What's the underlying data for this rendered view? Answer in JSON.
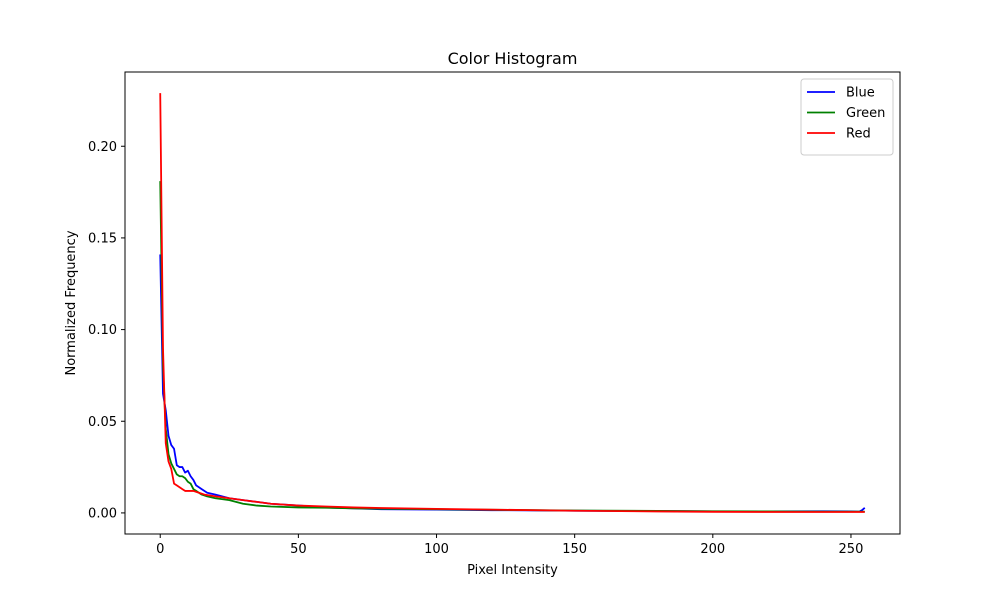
{
  "chart_data": {
    "type": "line",
    "title": "Color Histogram",
    "xlabel": "Pixel Intensity",
    "ylabel": "Normalized Frequency",
    "xlim": [
      -12.75,
      267.75
    ],
    "ylim": [
      -0.0115,
      0.2405
    ],
    "xticks": [
      0,
      50,
      100,
      150,
      200,
      250
    ],
    "xtick_labels": [
      "0",
      "50",
      "100",
      "150",
      "200",
      "250"
    ],
    "yticks": [
      0.0,
      0.05,
      0.1,
      0.15,
      0.2
    ],
    "ytick_labels": [
      "0.00",
      "0.05",
      "0.10",
      "0.15",
      "0.20"
    ],
    "grid": false,
    "legend_position": "top-right",
    "series": [
      {
        "name": "Blue",
        "color": "#0000ff",
        "points": [
          [
            0,
            0.141
          ],
          [
            1,
            0.065
          ],
          [
            2,
            0.056
          ],
          [
            3,
            0.042
          ],
          [
            4,
            0.037
          ],
          [
            5,
            0.035
          ],
          [
            6,
            0.026
          ],
          [
            7,
            0.025
          ],
          [
            8,
            0.025
          ],
          [
            9,
            0.022
          ],
          [
            10,
            0.023
          ],
          [
            11,
            0.02
          ],
          [
            12,
            0.018
          ],
          [
            13,
            0.015
          ],
          [
            14,
            0.014
          ],
          [
            15,
            0.013
          ],
          [
            17,
            0.011
          ],
          [
            20,
            0.01
          ],
          [
            25,
            0.008
          ],
          [
            30,
            0.007
          ],
          [
            35,
            0.006
          ],
          [
            40,
            0.005
          ],
          [
            50,
            0.004
          ],
          [
            60,
            0.003
          ],
          [
            70,
            0.0025
          ],
          [
            80,
            0.002
          ],
          [
            100,
            0.0018
          ],
          [
            120,
            0.0015
          ],
          [
            150,
            0.0012
          ],
          [
            180,
            0.001
          ],
          [
            200,
            0.0008
          ],
          [
            220,
            0.0008
          ],
          [
            240,
            0.0009
          ],
          [
            250,
            0.0008
          ],
          [
            253,
            0.0007
          ],
          [
            254,
            0.0015
          ],
          [
            255,
            0.0028
          ]
        ]
      },
      {
        "name": "Green",
        "color": "#008000",
        "points": [
          [
            0,
            0.181
          ],
          [
            1,
            0.08
          ],
          [
            2,
            0.046
          ],
          [
            3,
            0.032
          ],
          [
            4,
            0.027
          ],
          [
            5,
            0.024
          ],
          [
            6,
            0.021
          ],
          [
            7,
            0.02
          ],
          [
            8,
            0.02
          ],
          [
            9,
            0.019
          ],
          [
            10,
            0.017
          ],
          [
            11,
            0.016
          ],
          [
            12,
            0.013
          ],
          [
            13,
            0.012
          ],
          [
            15,
            0.01
          ],
          [
            17,
            0.009
          ],
          [
            20,
            0.008
          ],
          [
            25,
            0.007
          ],
          [
            30,
            0.005
          ],
          [
            35,
            0.004
          ],
          [
            40,
            0.0035
          ],
          [
            50,
            0.003
          ],
          [
            60,
            0.0028
          ],
          [
            70,
            0.0025
          ],
          [
            80,
            0.0023
          ],
          [
            100,
            0.002
          ],
          [
            120,
            0.0017
          ],
          [
            150,
            0.0013
          ],
          [
            180,
            0.0011
          ],
          [
            200,
            0.0009
          ],
          [
            220,
            0.0008
          ],
          [
            240,
            0.0007
          ],
          [
            255,
            0.0007
          ]
        ]
      },
      {
        "name": "Red",
        "color": "#ff0000",
        "points": [
          [
            0,
            0.229
          ],
          [
            1,
            0.09
          ],
          [
            2,
            0.038
          ],
          [
            3,
            0.028
          ],
          [
            4,
            0.024
          ],
          [
            5,
            0.016
          ],
          [
            6,
            0.015
          ],
          [
            7,
            0.014
          ],
          [
            8,
            0.013
          ],
          [
            9,
            0.012
          ],
          [
            10,
            0.012
          ],
          [
            12,
            0.012
          ],
          [
            14,
            0.011
          ],
          [
            16,
            0.01
          ],
          [
            20,
            0.009
          ],
          [
            25,
            0.008
          ],
          [
            30,
            0.007
          ],
          [
            35,
            0.006
          ],
          [
            40,
            0.005
          ],
          [
            50,
            0.004
          ],
          [
            60,
            0.0035
          ],
          [
            70,
            0.003
          ],
          [
            80,
            0.0027
          ],
          [
            100,
            0.0022
          ],
          [
            120,
            0.0018
          ],
          [
            150,
            0.0012
          ],
          [
            180,
            0.0008
          ],
          [
            200,
            0.0006
          ],
          [
            220,
            0.0005
          ],
          [
            240,
            0.0005
          ],
          [
            255,
            0.0005
          ]
        ]
      }
    ]
  }
}
